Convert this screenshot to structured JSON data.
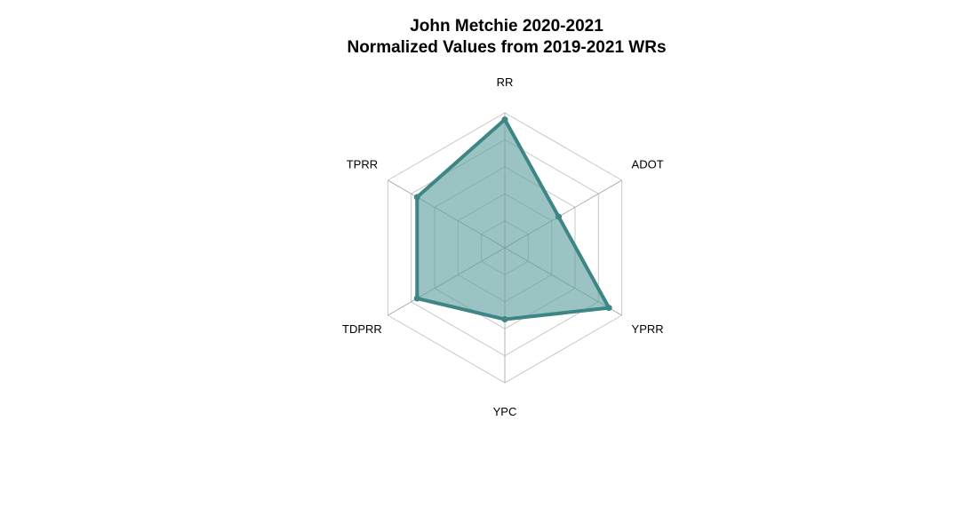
{
  "chart_data": {
    "type": "radar",
    "title": "John Metchie 2020-2021",
    "subtitle": "Normalized Values from 2019-2021 WRs",
    "axes": [
      "RR",
      "ADOT",
      "YPRR",
      "YPC",
      "TDPRR",
      "TPRR"
    ],
    "range": [
      0,
      1
    ],
    "grid_levels": [
      0.2,
      0.4,
      0.6,
      0.8,
      1.0
    ],
    "series": [
      {
        "values": [
          0.95,
          0.46,
          0.89,
          0.53,
          0.75,
          0.75
        ]
      }
    ],
    "colors": {
      "fill": "#5f9e9e",
      "stroke": "#3e8585",
      "grid": "#c8c8c8",
      "spoke": "#a0a0a0"
    }
  }
}
